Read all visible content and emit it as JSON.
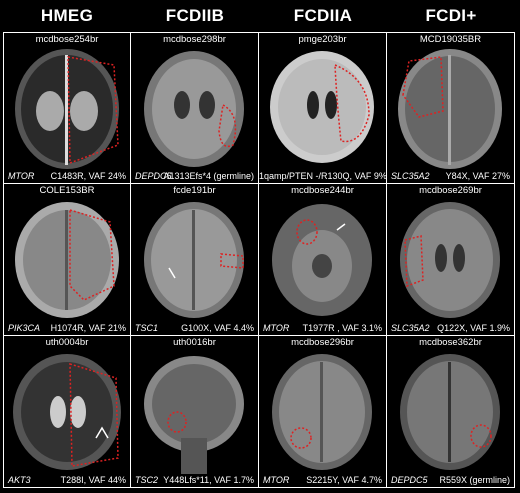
{
  "columns": [
    "HMEG",
    "FCDIIB",
    "FCDIIA",
    "FCDI+"
  ],
  "cells": [
    {
      "id": "mcdbose254br",
      "gene": "MTOR",
      "variant": "C1483R, VAF 24%"
    },
    {
      "id": "mcdbose298br",
      "gene": "DEPDC5",
      "variant": "A1313Efs*4 (germline)"
    },
    {
      "id": "pmge203br",
      "gene": "",
      "variant": "1qamp/PTEN -/R130Q, VAF 9%"
    },
    {
      "id": "MCD19035BR",
      "gene": "SLC35A2",
      "variant": "Y84X, VAF 27%"
    },
    {
      "id": "COLE153BR",
      "gene": "PIK3CA",
      "variant": "H1074R, VAF 21%"
    },
    {
      "id": "fcde191br",
      "gene": "TSC1",
      "variant": "G100X, VAF 4.4%"
    },
    {
      "id": "mcdbose244br",
      "gene": "MTOR",
      "variant": "T1977R , VAF 3.1%"
    },
    {
      "id": "mcdbose269br",
      "gene": "SLC35A2",
      "variant": "Q122X, VAF 1.9%"
    },
    {
      "id": "uth0004br",
      "gene": "AKT3",
      "variant": "T288I, VAF 44%"
    },
    {
      "id": "uth0016br",
      "gene": "TSC2",
      "variant": "Y448Lfs*11, VAF 1.7%"
    },
    {
      "id": "mcdbose296br",
      "gene": "MTOR",
      "variant": "S2215Y, VAF 4.7%"
    },
    {
      "id": "mcdbose362br",
      "gene": "DEPDC5",
      "variant": "R559X (germline)"
    }
  ]
}
